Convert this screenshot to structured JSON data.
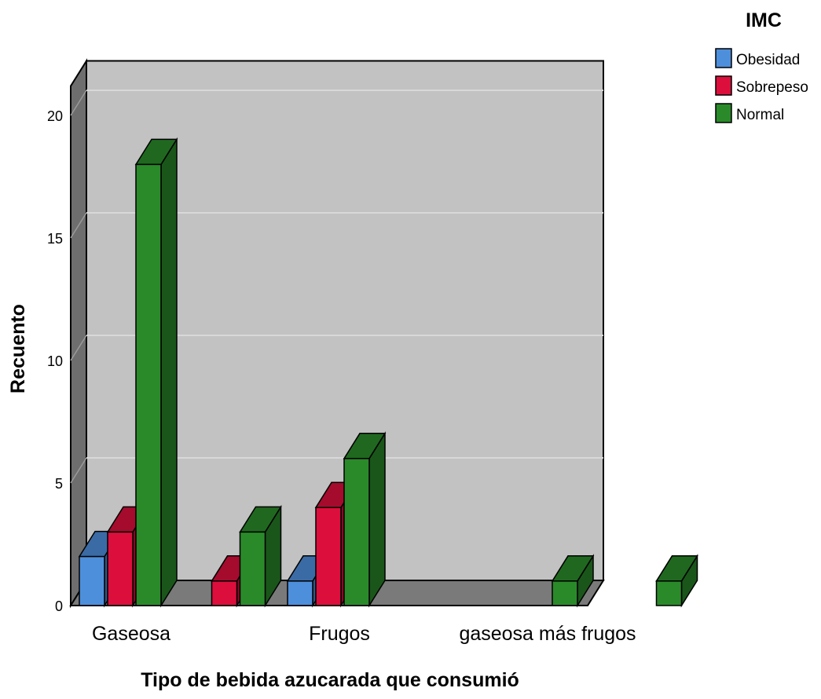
{
  "chart_data": {
    "type": "bar",
    "style": "3d-clustered",
    "categories": [
      "Gaseosa",
      "",
      "Frugos",
      "",
      "gaseosa más frugos",
      ""
    ],
    "series": [
      {
        "name": "Obesidad",
        "values": [
          2,
          0,
          1,
          0,
          0,
          0
        ],
        "color": "#4e8fdc"
      },
      {
        "name": "Sobrepeso",
        "values": [
          3,
          1,
          4,
          0,
          0,
          0
        ],
        "color": "#dc0f3c"
      },
      {
        "name": "Normal",
        "values": [
          18,
          3,
          6,
          0,
          1,
          1
        ],
        "color": "#2a8a2a"
      }
    ],
    "xlabel": "Tipo de bebida azucarada que consumió",
    "ylabel": "Recuento",
    "ylim": [
      0,
      20
    ],
    "yticks": [
      0,
      5,
      10,
      15,
      20
    ],
    "grid": true,
    "legend": {
      "title": "IMC",
      "placement": "top-right"
    },
    "wall_color": "#c2c2c2",
    "floor_color": "#7a7a7a"
  }
}
